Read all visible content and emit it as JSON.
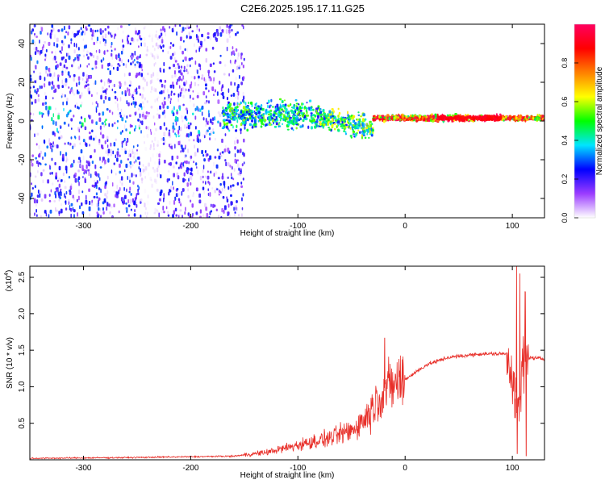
{
  "figure_title": "C2E6.2025.195.17.11.G25",
  "chart_data": [
    {
      "type": "heatmap",
      "xlabel": "Height of straight line (km)",
      "ylabel": "Frequency (Hz)",
      "xlim": [
        -350,
        130
      ],
      "ylim": [
        -50,
        50
      ],
      "xticks": [
        -300,
        -200,
        -100,
        0,
        100
      ],
      "yticks": [
        -40,
        -20,
        0,
        20,
        40
      ],
      "colorbar": {
        "label": "Normalized spectral amplitude",
        "range": [
          0,
          1
        ],
        "ticks": [
          "0.0",
          "0.2",
          "0.4",
          "0.6",
          "0.8"
        ],
        "colors": [
          "#ffffff",
          "#9b3cff",
          "#0000ff",
          "#00e5ff",
          "#00ff00",
          "#ffff00",
          "#ff8000",
          "#ff0000",
          "#ff0060"
        ]
      },
      "regions": [
        {
          "x": [
            -350,
            -245
          ],
          "freq_spread": 50,
          "amplitude": 0.18
        },
        {
          "x": [
            -245,
            -230
          ],
          "freq_spread": 50,
          "amplitude": 0.05
        },
        {
          "x": [
            -230,
            -150
          ],
          "freq_spread": 50,
          "amplitude": 0.16
        },
        {
          "x": [
            -170,
            -80
          ],
          "freq_spread": 10,
          "amplitude": 0.45
        },
        {
          "x": [
            -80,
            -30
          ],
          "freq_spread": 8,
          "amplitude": 0.5
        },
        {
          "x": [
            -30,
            130
          ],
          "freq_spread": 2,
          "amplitude": 0.85
        }
      ]
    },
    {
      "type": "line",
      "xlabel": "Height of straight line (km)",
      "ylabel": "SNR (10 * v/v)",
      "scale_label": "(x10",
      "scale_exp": "4",
      "xlim": [
        -350,
        130
      ],
      "ylim": [
        0,
        2.65
      ],
      "xticks": [
        -300,
        -200,
        -100,
        0,
        100
      ],
      "yticks": [
        0.5,
        1.0,
        1.5,
        2.0,
        2.5
      ],
      "color": "#e8302a",
      "envelope": [
        {
          "x": -350,
          "y": 0.02
        },
        {
          "x": -260,
          "y": 0.03
        },
        {
          "x": -160,
          "y": 0.05
        },
        {
          "x": -130,
          "y": 0.1
        },
        {
          "x": -100,
          "y": 0.2
        },
        {
          "x": -70,
          "y": 0.3
        },
        {
          "x": -50,
          "y": 0.4
        },
        {
          "x": -35,
          "y": 0.6
        },
        {
          "x": -25,
          "y": 0.85
        },
        {
          "x": -15,
          "y": 1.0
        },
        {
          "x": 0,
          "y": 1.1
        },
        {
          "x": 20,
          "y": 1.3
        },
        {
          "x": 40,
          "y": 1.4
        },
        {
          "x": 70,
          "y": 1.45
        },
        {
          "x": 95,
          "y": 1.45
        },
        {
          "x": 100,
          "y": 1.2
        },
        {
          "x": 105,
          "y": 0.5
        },
        {
          "x": 110,
          "y": 1.3
        },
        {
          "x": 115,
          "y": 1.4
        },
        {
          "x": 130,
          "y": 1.38
        }
      ],
      "spikes": [
        {
          "x": -19,
          "y": 1.67
        },
        {
          "x": 104,
          "y": 2.65
        },
        {
          "x": 107,
          "y": 2.55
        },
        {
          "x": 112,
          "y": 2.3
        },
        {
          "x": 104.5,
          "y": 0.08
        },
        {
          "x": 113,
          "y": 0.05
        }
      ]
    }
  ]
}
